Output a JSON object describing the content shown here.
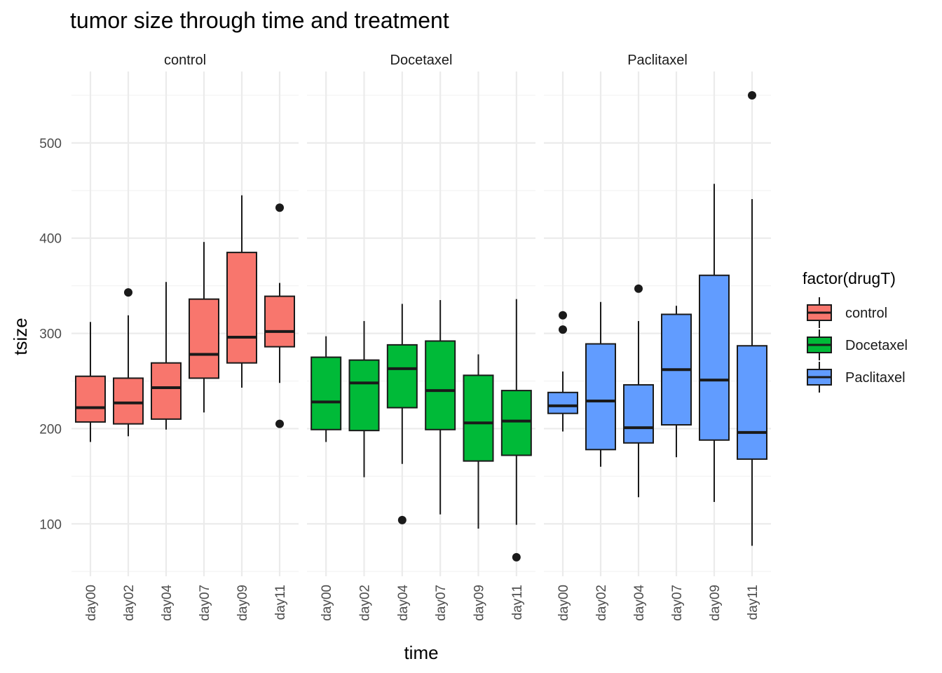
{
  "chart_data": {
    "type": "boxplot",
    "title": "tumor size through time and treatment",
    "xlabel": "time",
    "ylabel": "tsize",
    "ylim": [
      45,
      575
    ],
    "y_ticks": [
      100,
      200,
      300,
      400,
      500
    ],
    "categories": [
      "day00",
      "day02",
      "day04",
      "day07",
      "day09",
      "day11"
    ],
    "grid": true,
    "legend": {
      "title": "factor(drugT)",
      "position": "right",
      "entries": [
        {
          "label": "control",
          "color": "#F8766D"
        },
        {
          "label": "Docetaxel",
          "color": "#00BA38"
        },
        {
          "label": "Paclitaxel",
          "color": "#619CFF"
        }
      ]
    },
    "facets": [
      {
        "name": "control",
        "color": "#F8766D",
        "boxes": [
          {
            "x": "day00",
            "min": 186,
            "q1": 207,
            "median": 222,
            "q3": 255,
            "max": 312,
            "outliers": []
          },
          {
            "x": "day02",
            "min": 192,
            "q1": 205,
            "median": 227,
            "q3": 253,
            "max": 319,
            "outliers": [
              343
            ]
          },
          {
            "x": "day04",
            "min": 199,
            "q1": 210,
            "median": 243,
            "q3": 269,
            "max": 354,
            "outliers": []
          },
          {
            "x": "day07",
            "min": 217,
            "q1": 253,
            "median": 278,
            "q3": 336,
            "max": 396,
            "outliers": []
          },
          {
            "x": "day09",
            "min": 243,
            "q1": 269,
            "median": 296,
            "q3": 385,
            "max": 445,
            "outliers": []
          },
          {
            "x": "day11",
            "min": 248,
            "q1": 286,
            "median": 302,
            "q3": 339,
            "max": 353,
            "outliers": [
              432,
              205
            ]
          }
        ]
      },
      {
        "name": "Docetaxel",
        "color": "#00BA38",
        "boxes": [
          {
            "x": "day00",
            "min": 186,
            "q1": 199,
            "median": 228,
            "q3": 275,
            "max": 297,
            "outliers": []
          },
          {
            "x": "day02",
            "min": 149,
            "q1": 198,
            "median": 248,
            "q3": 272,
            "max": 313,
            "outliers": []
          },
          {
            "x": "day04",
            "min": 163,
            "q1": 222,
            "median": 263,
            "q3": 288,
            "max": 331,
            "outliers": [
              104
            ]
          },
          {
            "x": "day07",
            "min": 110,
            "q1": 199,
            "median": 240,
            "q3": 292,
            "max": 335,
            "outliers": []
          },
          {
            "x": "day09",
            "min": 95,
            "q1": 166,
            "median": 206,
            "q3": 256,
            "max": 278,
            "outliers": []
          },
          {
            "x": "day11",
            "min": 99,
            "q1": 172,
            "median": 208,
            "q3": 240,
            "max": 336,
            "outliers": [
              65
            ]
          }
        ]
      },
      {
        "name": "Paclitaxel",
        "color": "#619CFF",
        "boxes": [
          {
            "x": "day00",
            "min": 197,
            "q1": 216,
            "median": 224,
            "q3": 238,
            "max": 260,
            "outliers": [
              319,
              304
            ]
          },
          {
            "x": "day02",
            "min": 160,
            "q1": 178,
            "median": 229,
            "q3": 289,
            "max": 333,
            "outliers": []
          },
          {
            "x": "day04",
            "min": 128,
            "q1": 185,
            "median": 201,
            "q3": 246,
            "max": 313,
            "outliers": [
              347
            ]
          },
          {
            "x": "day07",
            "min": 170,
            "q1": 204,
            "median": 262,
            "q3": 320,
            "max": 329,
            "outliers": []
          },
          {
            "x": "day09",
            "min": 123,
            "q1": 188,
            "median": 251,
            "q3": 361,
            "max": 457,
            "outliers": []
          },
          {
            "x": "day11",
            "min": 77,
            "q1": 168,
            "median": 196,
            "q3": 287,
            "max": 441,
            "outliers": [
              550
            ]
          }
        ]
      }
    ]
  }
}
